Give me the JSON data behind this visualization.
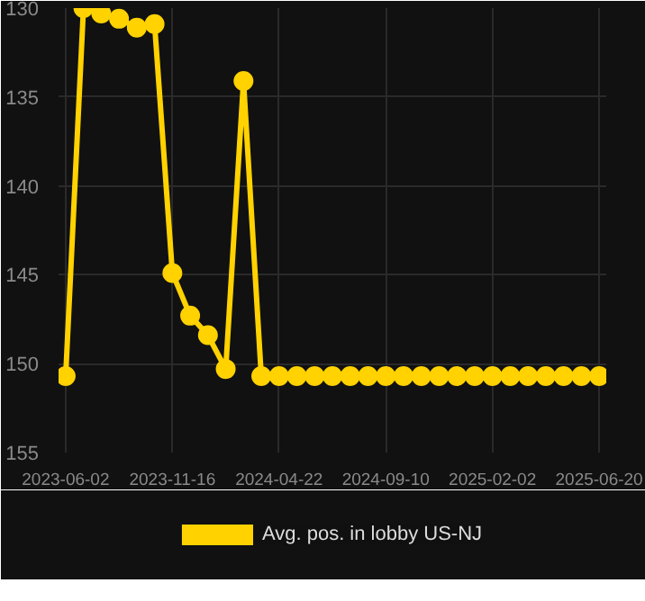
{
  "chart_data": {
    "type": "line",
    "categories": [
      "2023-06-02",
      null,
      null,
      null,
      null,
      null,
      "2023-11-16",
      null,
      null,
      null,
      null,
      null,
      "2024-04-22",
      null,
      null,
      null,
      null,
      null,
      "2024-09-10",
      null,
      null,
      null,
      null,
      null,
      "2025-02-02",
      null,
      null,
      null,
      null,
      null,
      "2025-06-20"
    ],
    "series": [
      {
        "name": "Avg. pos. in lobby US-NJ",
        "color": "#ffd200",
        "values": [
          150.7,
          130.0,
          130.3,
          130.6,
          131.1,
          130.9,
          144.9,
          147.3,
          148.4,
          150.3,
          134.1,
          150.7,
          150.7,
          150.7,
          150.7,
          150.7,
          150.7,
          150.7,
          150.7,
          150.7,
          150.7,
          150.7,
          150.7,
          150.7,
          150.7,
          150.7,
          150.7,
          150.7,
          150.7,
          150.7,
          150.7
        ]
      }
    ],
    "ylim": [
      155,
      130
    ],
    "yticks": [
      130,
      135,
      140,
      145,
      150,
      155
    ],
    "grid": true,
    "legend": "bottom",
    "marker": "circle",
    "line_style": "solid"
  }
}
